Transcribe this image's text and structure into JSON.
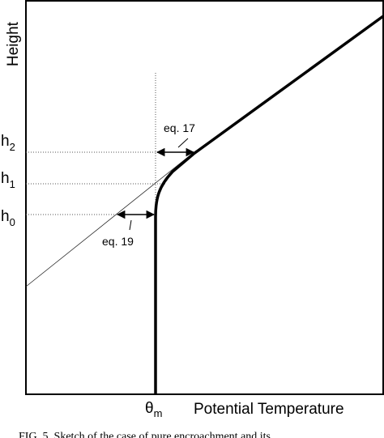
{
  "y_axis_label": "Height",
  "x_axis_label": "Potential Temperature",
  "x_marker": {
    "symbol": "θ",
    "subscript": "m"
  },
  "height_levels": [
    {
      "symbol": "h",
      "subscript": "2"
    },
    {
      "symbol": "h",
      "subscript": "1"
    },
    {
      "symbol": "h",
      "subscript": "0"
    }
  ],
  "annotations": {
    "eq17": "eq. 17",
    "eq19": "eq. 19"
  },
  "caption": "FIG. 5. Sketch of the case of pure encroachment and its"
}
